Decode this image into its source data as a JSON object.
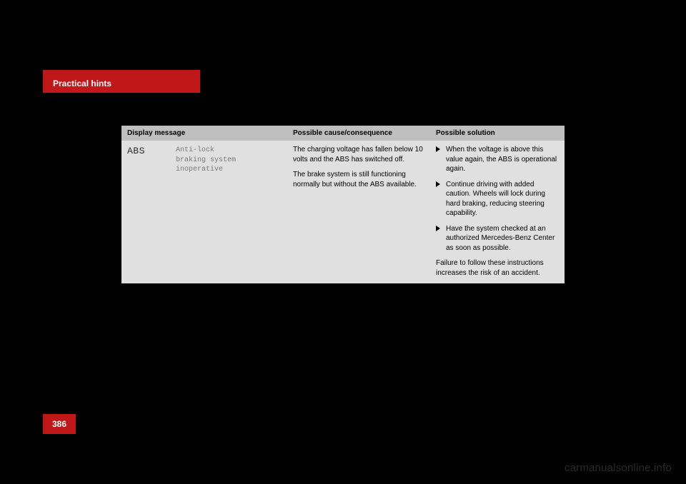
{
  "header": {
    "section_label": "Practical hints"
  },
  "page": {
    "number": "386"
  },
  "watermark": "carmanualsonline.info",
  "table": {
    "columns": {
      "display_message": "Display message",
      "possible_cause": "Possible cause/consequence",
      "possible_solution": "Possible solution"
    },
    "row": {
      "abs_label": "ABS",
      "mono_lines": {
        "l1": "Anti-lock",
        "l2": "braking system",
        "l3": "inoperative"
      },
      "cause": {
        "p1": "The charging voltage has fallen below 10 volts and the ABS has switched off.",
        "p2": "The brake system is still functioning normally but without the ABS available."
      },
      "solution": {
        "b1": "When the voltage is above this value again, the ABS is operational again.",
        "b2": "Continue driving with added caution. Wheels will lock during hard braking, reducing steering capability.",
        "b3": "Have the system checked at an authorized Mercedes-Benz Center as soon as possible.",
        "footer": "Failure to follow these instructions increases the risk of an accident."
      }
    }
  },
  "colors": {
    "red": "#c01818",
    "header_gray": "#bfbfbf",
    "body_gray": "#e0e0e0",
    "mono_text": "#7a7a7a",
    "watermark": "#2a2a2a"
  }
}
